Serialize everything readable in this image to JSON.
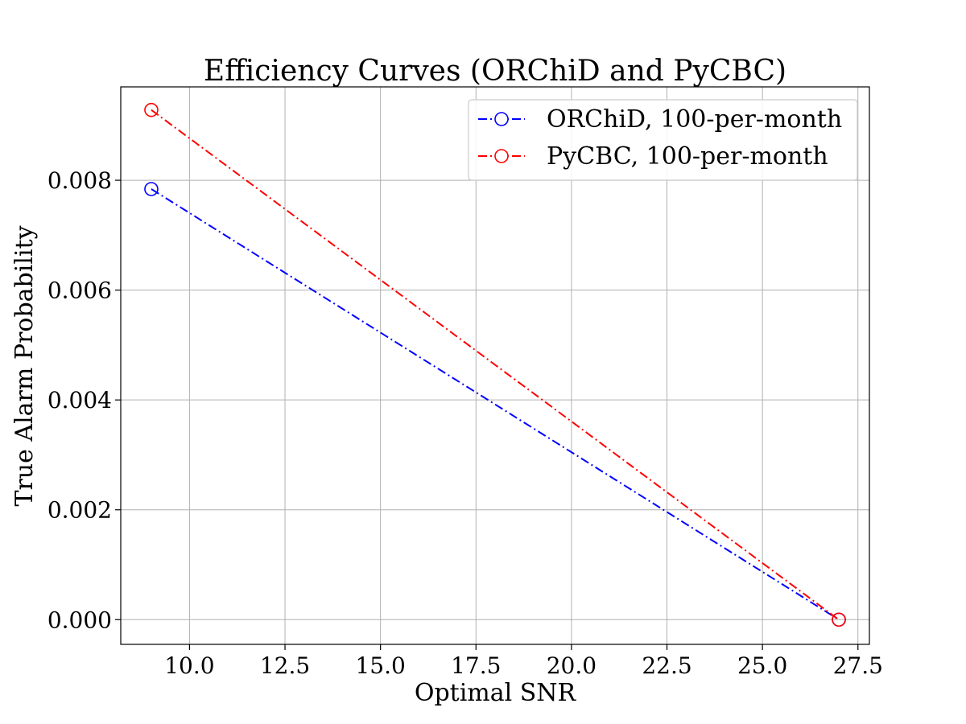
{
  "chart_data": {
    "type": "line",
    "title": "Efficiency Curves (ORChiD and PyCBC)",
    "xlabel": "Optimal SNR",
    "ylabel": "True Alarm Probability",
    "xlim": [
      8.2,
      27.8
    ],
    "ylim": [
      -0.00045,
      0.0097
    ],
    "xticks": [
      10.0,
      12.5,
      15.0,
      17.5,
      20.0,
      22.5,
      25.0,
      27.5
    ],
    "xtick_labels": [
      "10.0",
      "12.5",
      "15.0",
      "17.5",
      "20.0",
      "22.5",
      "25.0",
      "27.5"
    ],
    "yticks": [
      0.0,
      0.002,
      0.004,
      0.006,
      0.008
    ],
    "ytick_labels": [
      "0.000",
      "0.002",
      "0.004",
      "0.006",
      "0.008"
    ],
    "grid": true,
    "legend_position": "top-right",
    "series": [
      {
        "name": "ORChiD, 100-per-month",
        "color": "#0000ff",
        "linestyle": "dash-dot",
        "marker": "open-circle",
        "x": [
          9.0,
          27.0
        ],
        "y": [
          0.00784,
          0.0
        ]
      },
      {
        "name": "PyCBC, 100-per-month",
        "color": "#ff0000",
        "linestyle": "dash-dot",
        "marker": "open-circle",
        "x": [
          9.0,
          27.0
        ],
        "y": [
          0.00928,
          0.0
        ]
      }
    ]
  }
}
